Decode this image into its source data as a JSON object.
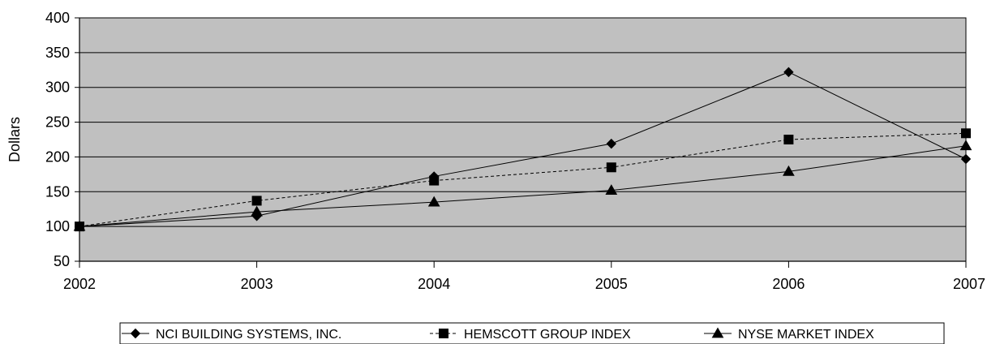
{
  "chart_data": {
    "type": "line",
    "title": "",
    "xlabel": "",
    "ylabel": "Dollars",
    "x": [
      "2002",
      "2003",
      "2004",
      "2005",
      "2006",
      "2007"
    ],
    "ylim": [
      50,
      400
    ],
    "yticks": [
      50,
      100,
      150,
      200,
      250,
      300,
      350,
      400
    ],
    "grid": true,
    "legend_position": "bottom",
    "series": [
      {
        "name": "NCI BUILDING SYSTEMS, INC.",
        "values": [
          100,
          115,
          172,
          219,
          322,
          197
        ],
        "marker": "diamond",
        "line_style": "solid"
      },
      {
        "name": "HEMSCOTT GROUP INDEX",
        "values": [
          100,
          137,
          166,
          185,
          225,
          234
        ],
        "marker": "square",
        "line_style": "dashed"
      },
      {
        "name": "NYSE MARKET INDEX",
        "values": [
          100,
          121,
          135,
          152,
          179,
          216
        ],
        "marker": "triangle",
        "line_style": "solid"
      }
    ],
    "colors": {
      "plot_background": "#c0c0c0",
      "line": "#000000",
      "grid": "#000000"
    }
  }
}
